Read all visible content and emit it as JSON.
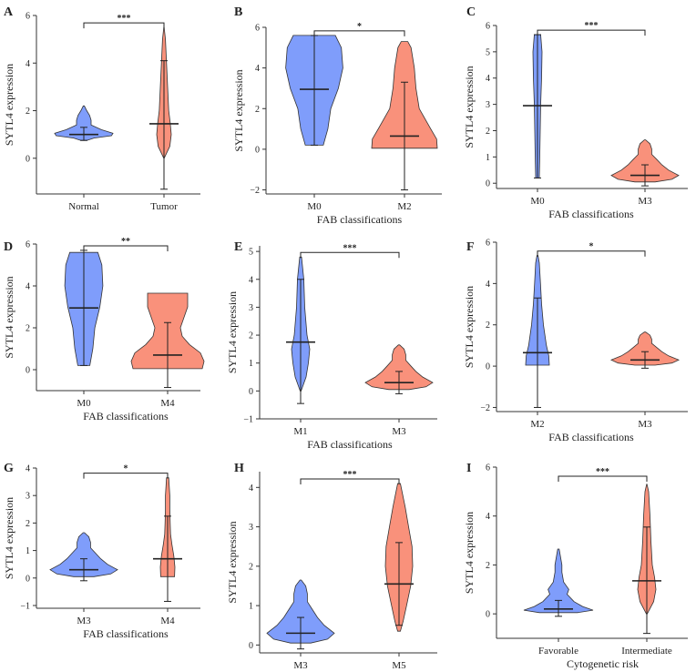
{
  "colors": {
    "first": "#7f9dfb",
    "second": "#f9917b"
  },
  "chart_data": [
    {
      "panel": "A",
      "type": "violin",
      "categories": [
        "Normal",
        "Tumor"
      ],
      "xlabel": "",
      "ylabel": "SYTL4 expression",
      "ylim": [
        -1.5,
        6
      ],
      "yticks": [
        0,
        2,
        4,
        6
      ],
      "significance": "***",
      "series": [
        {
          "name": "Normal",
          "min": 0.75,
          "max": 2.2,
          "median": 1.0,
          "whisker_low": 0.75,
          "whisker_high": 1.3,
          "profile": [
            [
              0.75,
              0.1
            ],
            [
              0.85,
              0.35
            ],
            [
              0.95,
              0.95
            ],
            [
              1.05,
              1.0
            ],
            [
              1.2,
              0.6
            ],
            [
              1.4,
              0.25
            ],
            [
              1.6,
              0.25
            ],
            [
              1.8,
              0.2
            ],
            [
              2.0,
              0.1
            ],
            [
              2.2,
              0.02
            ]
          ]
        },
        {
          "name": "Tumor",
          "min": 0.0,
          "max": 5.5,
          "median": 1.45,
          "whisker_low": -1.3,
          "whisker_high": 4.1,
          "profile": [
            [
              0.0,
              0.02
            ],
            [
              0.5,
              0.8
            ],
            [
              1.0,
              1.0
            ],
            [
              1.5,
              0.85
            ],
            [
              2.0,
              0.65
            ],
            [
              3.0,
              0.5
            ],
            [
              4.0,
              0.35
            ],
            [
              5.0,
              0.2
            ],
            [
              5.5,
              0.02
            ]
          ]
        }
      ]
    },
    {
      "panel": "B",
      "type": "violin",
      "categories": [
        "M0",
        "M2"
      ],
      "xlabel": "FAB classifications",
      "ylabel": "SYTL4 expression",
      "ylim": [
        -2.2,
        6
      ],
      "yticks": [
        -2,
        0,
        2,
        4,
        6
      ],
      "significance": "*",
      "series": [
        {
          "name": "M0",
          "min": 0.2,
          "max": 5.6,
          "median": 2.95,
          "whisker_low": 0.2,
          "whisker_high": 5.6,
          "profile": [
            [
              0.2,
              0.3
            ],
            [
              1.0,
              0.45
            ],
            [
              2.0,
              0.55
            ],
            [
              3.0,
              0.8
            ],
            [
              4.0,
              0.95
            ],
            [
              5.0,
              0.9
            ],
            [
              5.6,
              0.7
            ]
          ]
        },
        {
          "name": "M2",
          "min": 0.05,
          "max": 5.3,
          "median": 0.65,
          "whisker_low": -2.0,
          "whisker_high": 3.3,
          "profile": [
            [
              0.05,
              1.0
            ],
            [
              0.5,
              0.98
            ],
            [
              1.0,
              0.8
            ],
            [
              2.0,
              0.45
            ],
            [
              3.0,
              0.35
            ],
            [
              4.0,
              0.3
            ],
            [
              5.0,
              0.2
            ],
            [
              5.3,
              0.1
            ]
          ]
        }
      ]
    },
    {
      "panel": "C",
      "type": "violin",
      "categories": [
        "M0",
        "M3"
      ],
      "xlabel": "FAB classifications",
      "ylabel": "SYTL4 expression",
      "ylim": [
        -0.2,
        6
      ],
      "yticks": [
        0,
        1,
        2,
        3,
        4,
        5,
        6
      ],
      "significance": "***",
      "series": [
        {
          "name": "M0",
          "min": 0.2,
          "max": 5.65,
          "median": 2.95,
          "whisker_low": 0.2,
          "whisker_high": 5.65,
          "profile": [
            [
              0.2,
              0.2
            ],
            [
              1.0,
              0.25
            ],
            [
              2.0,
              0.3
            ],
            [
              3.0,
              0.35
            ],
            [
              4.0,
              0.45
            ],
            [
              5.0,
              0.5
            ],
            [
              5.65,
              0.35
            ]
          ]
        },
        {
          "name": "M3",
          "min": 0.05,
          "max": 1.65,
          "median": 0.3,
          "whisker_low": -0.1,
          "whisker_high": 0.7,
          "profile": [
            [
              0.05,
              0.3
            ],
            [
              0.15,
              0.8
            ],
            [
              0.3,
              1.0
            ],
            [
              0.5,
              0.7
            ],
            [
              0.7,
              0.5
            ],
            [
              0.9,
              0.35
            ],
            [
              1.1,
              0.2
            ],
            [
              1.3,
              0.2
            ],
            [
              1.5,
              0.15
            ],
            [
              1.65,
              0.02
            ]
          ]
        }
      ]
    },
    {
      "panel": "D",
      "type": "violin",
      "categories": [
        "M0",
        "M4"
      ],
      "xlabel": "FAB classifications",
      "ylabel": "SYTL4 expression",
      "ylim": [
        -1,
        6
      ],
      "yticks": [
        0,
        2,
        4,
        6
      ],
      "significance": "**",
      "series": [
        {
          "name": "M0",
          "min": 0.2,
          "max": 5.6,
          "median": 2.95,
          "whisker_low": 0.2,
          "whisker_high": 5.7,
          "profile": [
            [
              0.2,
              0.3
            ],
            [
              1.0,
              0.45
            ],
            [
              2.0,
              0.55
            ],
            [
              3.0,
              0.8
            ],
            [
              4.0,
              0.95
            ],
            [
              5.0,
              0.9
            ],
            [
              5.6,
              0.7
            ]
          ]
        },
        {
          "name": "M4",
          "min": 0.05,
          "max": 3.65,
          "median": 0.7,
          "whisker_low": -0.85,
          "whisker_high": 2.25,
          "profile": [
            [
              0.05,
              0.95
            ],
            [
              0.4,
              1.0
            ],
            [
              0.8,
              0.9
            ],
            [
              1.2,
              0.6
            ],
            [
              1.6,
              0.4
            ],
            [
              2.0,
              0.35
            ],
            [
              2.5,
              0.45
            ],
            [
              3.0,
              0.55
            ],
            [
              3.65,
              0.55
            ]
          ]
        }
      ]
    },
    {
      "panel": "E",
      "type": "violin",
      "categories": [
        "M1",
        "M3"
      ],
      "xlabel": "FAB classifications",
      "ylabel": "SYTL4 expression",
      "ylim": [
        -1,
        5.2
      ],
      "yticks": [
        -1,
        0,
        1,
        2,
        3,
        4,
        5
      ],
      "significance": "***",
      "series": [
        {
          "name": "M1",
          "min": 0.0,
          "max": 4.8,
          "median": 1.75,
          "whisker_low": -0.45,
          "whisker_high": 4.0,
          "profile": [
            [
              0.0,
              0.05
            ],
            [
              0.5,
              0.6
            ],
            [
              1.0,
              0.85
            ],
            [
              1.5,
              1.0
            ],
            [
              2.0,
              0.7
            ],
            [
              3.0,
              0.45
            ],
            [
              4.0,
              0.35
            ],
            [
              4.8,
              0.1
            ]
          ]
        },
        {
          "name": "M3",
          "min": 0.05,
          "max": 1.65,
          "median": 0.3,
          "whisker_low": -0.1,
          "whisker_high": 0.7,
          "profile": [
            [
              0.05,
              0.3
            ],
            [
              0.15,
              0.8
            ],
            [
              0.3,
              1.0
            ],
            [
              0.5,
              0.7
            ],
            [
              0.7,
              0.5
            ],
            [
              0.9,
              0.35
            ],
            [
              1.1,
              0.2
            ],
            [
              1.3,
              0.2
            ],
            [
              1.5,
              0.15
            ],
            [
              1.65,
              0.02
            ]
          ]
        }
      ]
    },
    {
      "panel": "F",
      "type": "violin",
      "categories": [
        "M2",
        "M3"
      ],
      "xlabel": "FAB classifications",
      "ylabel": "SYTL4 expression",
      "ylim": [
        -2.2,
        6
      ],
      "yticks": [
        -2,
        0,
        2,
        4,
        6
      ],
      "significance": "*",
      "series": [
        {
          "name": "M2",
          "min": 0.05,
          "max": 5.35,
          "median": 0.65,
          "whisker_low": -2.0,
          "whisker_high": 3.3,
          "profile": [
            [
              0.05,
              1.0
            ],
            [
              0.5,
              0.95
            ],
            [
              1.0,
              0.75
            ],
            [
              2.0,
              0.5
            ],
            [
              3.0,
              0.35
            ],
            [
              4.0,
              0.25
            ],
            [
              5.0,
              0.15
            ],
            [
              5.35,
              0.05
            ]
          ]
        },
        {
          "name": "M3",
          "min": 0.05,
          "max": 1.65,
          "median": 0.3,
          "whisker_low": -0.1,
          "whisker_high": 0.7,
          "profile": [
            [
              0.05,
              0.3
            ],
            [
              0.15,
              0.8
            ],
            [
              0.3,
              1.0
            ],
            [
              0.5,
              0.7
            ],
            [
              0.7,
              0.5
            ],
            [
              0.9,
              0.35
            ],
            [
              1.1,
              0.2
            ],
            [
              1.3,
              0.2
            ],
            [
              1.5,
              0.15
            ],
            [
              1.65,
              0.02
            ]
          ]
        }
      ]
    },
    {
      "panel": "G",
      "type": "violin",
      "categories": [
        "M3",
        "M4"
      ],
      "xlabel": "FAB classifications",
      "ylabel": "SYTL4 expression",
      "ylim": [
        -1.1,
        4
      ],
      "yticks": [
        -1,
        0,
        1,
        2,
        3,
        4
      ],
      "significance": "*",
      "series": [
        {
          "name": "M3",
          "min": 0.05,
          "max": 1.65,
          "median": 0.3,
          "whisker_low": -0.1,
          "whisker_high": 0.7,
          "profile": [
            [
              0.05,
              0.3
            ],
            [
              0.15,
              0.8
            ],
            [
              0.3,
              1.0
            ],
            [
              0.5,
              0.7
            ],
            [
              0.7,
              0.5
            ],
            [
              0.9,
              0.35
            ],
            [
              1.1,
              0.2
            ],
            [
              1.3,
              0.2
            ],
            [
              1.5,
              0.15
            ],
            [
              1.65,
              0.02
            ]
          ]
        },
        {
          "name": "M4",
          "min": 0.05,
          "max": 3.65,
          "median": 0.7,
          "whisker_low": -0.85,
          "whisker_high": 2.25,
          "profile": [
            [
              0.05,
              0.95
            ],
            [
              0.4,
              1.0
            ],
            [
              0.8,
              0.85
            ],
            [
              1.2,
              0.6
            ],
            [
              1.6,
              0.4
            ],
            [
              2.0,
              0.35
            ],
            [
              2.5,
              0.3
            ],
            [
              3.0,
              0.3
            ],
            [
              3.65,
              0.15
            ]
          ]
        }
      ]
    },
    {
      "panel": "H",
      "type": "violin",
      "categories": [
        "M3",
        "M5"
      ],
      "xlabel": "FAB classifications",
      "ylabel": "SYTL4 expression",
      "ylim": [
        -0.2,
        4.4
      ],
      "yticks": [
        0,
        1,
        2,
        3,
        4
      ],
      "significance": "***",
      "series": [
        {
          "name": "M3",
          "min": 0.05,
          "max": 1.65,
          "median": 0.3,
          "whisker_low": -0.1,
          "whisker_high": 0.7,
          "profile": [
            [
              0.05,
              0.3
            ],
            [
              0.15,
              0.8
            ],
            [
              0.3,
              1.0
            ],
            [
              0.5,
              0.7
            ],
            [
              0.7,
              0.5
            ],
            [
              0.9,
              0.35
            ],
            [
              1.1,
              0.2
            ],
            [
              1.3,
              0.2
            ],
            [
              1.5,
              0.15
            ],
            [
              1.65,
              0.02
            ]
          ]
        },
        {
          "name": "M5",
          "min": 0.35,
          "max": 4.1,
          "median": 1.55,
          "whisker_low": 0.5,
          "whisker_high": 2.6,
          "profile": [
            [
              0.35,
              0.1
            ],
            [
              0.6,
              0.3
            ],
            [
              1.0,
              0.55
            ],
            [
              1.5,
              0.85
            ],
            [
              2.0,
              1.0
            ],
            [
              2.5,
              0.95
            ],
            [
              3.0,
              0.7
            ],
            [
              3.5,
              0.45
            ],
            [
              4.1,
              0.1
            ]
          ]
        }
      ]
    },
    {
      "panel": "I",
      "type": "violin",
      "categories": [
        "Favorable",
        "Intermediate"
      ],
      "xlabel": "Cytogenetic risk",
      "ylabel": "SYTL4 expression",
      "ylim": [
        -1,
        6
      ],
      "yticks": [
        0,
        2,
        4,
        6
      ],
      "significance": "***",
      "series": [
        {
          "name": "Favorable",
          "min": 0.05,
          "max": 2.65,
          "median": 0.2,
          "whisker_low": -0.1,
          "whisker_high": 0.55,
          "profile": [
            [
              0.05,
              0.55
            ],
            [
              0.15,
              1.0
            ],
            [
              0.3,
              0.7
            ],
            [
              0.5,
              0.45
            ],
            [
              0.8,
              0.25
            ],
            [
              1.0,
              0.3
            ],
            [
              1.3,
              0.15
            ],
            [
              1.7,
              0.1
            ],
            [
              2.0,
              0.1
            ],
            [
              2.65,
              0.02
            ]
          ]
        },
        {
          "name": "Intermediate",
          "min": 0.0,
          "max": 5.3,
          "median": 1.35,
          "whisker_low": -0.8,
          "whisker_high": 3.55,
          "profile": [
            [
              0.0,
              0.05
            ],
            [
              0.5,
              0.75
            ],
            [
              1.0,
              1.0
            ],
            [
              1.5,
              0.85
            ],
            [
              2.0,
              0.6
            ],
            [
              3.0,
              0.45
            ],
            [
              4.0,
              0.35
            ],
            [
              5.0,
              0.2
            ],
            [
              5.3,
              0.02
            ]
          ]
        }
      ]
    }
  ]
}
